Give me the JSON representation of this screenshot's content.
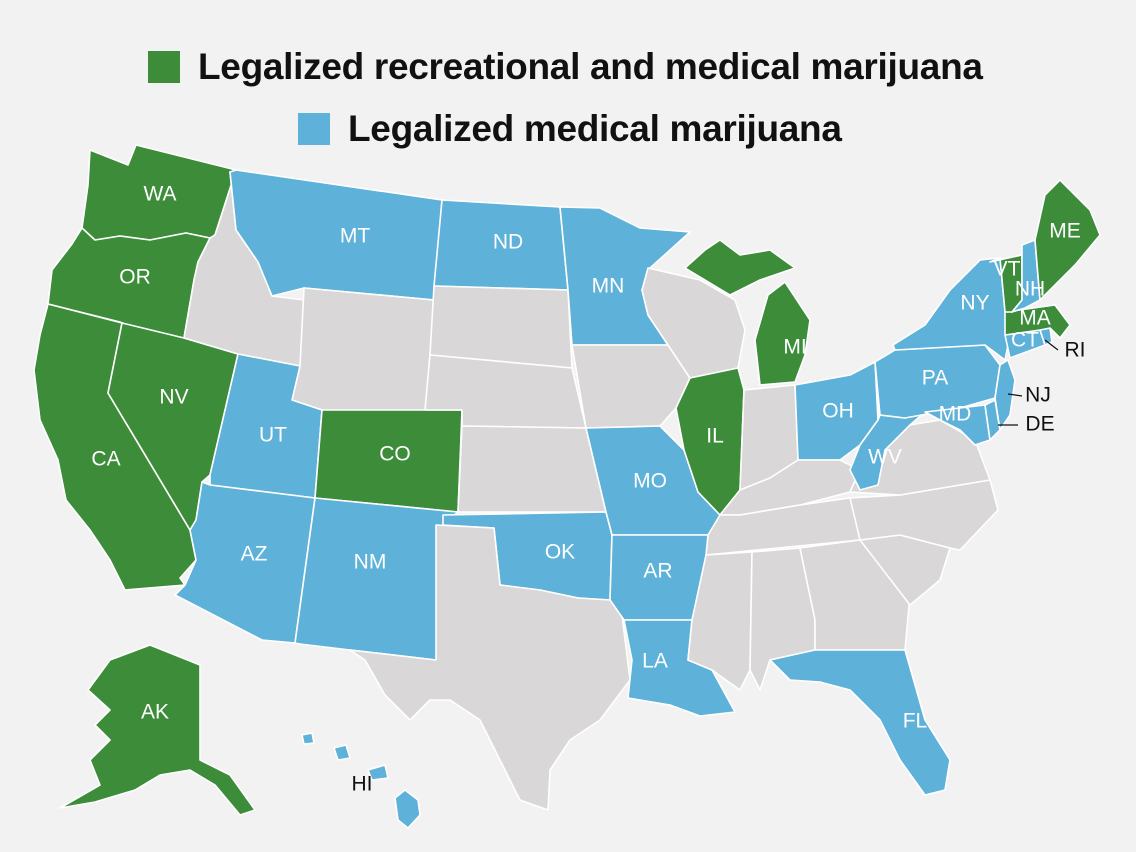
{
  "legend": {
    "recreational_label": "Legalized recreational and medical marijuana",
    "medical_label": "Legalized medical marijuana"
  },
  "colors": {
    "recreational": "#3c8c3a",
    "medical": "#5eb1d8",
    "none": "#d9d7d8",
    "background": "#f2f2f2"
  },
  "states": {
    "WA": "recreational",
    "OR": "recreational",
    "CA": "recreational",
    "NV": "recreational",
    "CO": "recreational",
    "AK": "recreational",
    "MI": "recreational",
    "IL": "recreational",
    "ME": "recreational",
    "VT": "recreational",
    "MA": "recreational",
    "MT": "medical",
    "ND": "medical",
    "MN": "medical",
    "UT": "medical",
    "AZ": "medical",
    "NM": "medical",
    "OK": "medical",
    "AR": "medical",
    "MO": "medical",
    "LA": "medical",
    "FL": "medical",
    "OH": "medical",
    "WV": "medical",
    "PA": "medical",
    "NY": "medical",
    "NH": "medical",
    "CT": "medical",
    "RI": "medical",
    "NJ": "medical",
    "DE": "medical",
    "MD": "medical",
    "HI": "medical",
    "ID": "none",
    "WY": "none",
    "SD": "none",
    "NE": "none",
    "KS": "none",
    "IA": "none",
    "WI": "none",
    "TX": "none",
    "MS": "none",
    "AL": "none",
    "GA": "none",
    "SC": "none",
    "NC": "none",
    "TN": "none",
    "KY": "none",
    "IN": "none",
    "VA": "none"
  },
  "labels": {
    "WA": "WA",
    "OR": "OR",
    "CA": "CA",
    "NV": "NV",
    "CO": "CO",
    "AK": "AK",
    "MI": "MI",
    "IL": "IL",
    "ME": "ME",
    "VT": "VT",
    "MA": "MA",
    "MT": "MT",
    "ND": "ND",
    "MN": "MN",
    "UT": "UT",
    "AZ": "AZ",
    "NM": "NM",
    "OK": "OK",
    "AR": "AR",
    "MO": "MO",
    "LA": "LA",
    "FL": "FL",
    "OH": "OH",
    "WV": "WV",
    "PA": "PA",
    "NY": "NY",
    "NH": "NH",
    "CT": "CT",
    "RI": "RI",
    "NJ": "NJ",
    "DE": "DE",
    "MD": "MD",
    "HI": "HI"
  }
}
